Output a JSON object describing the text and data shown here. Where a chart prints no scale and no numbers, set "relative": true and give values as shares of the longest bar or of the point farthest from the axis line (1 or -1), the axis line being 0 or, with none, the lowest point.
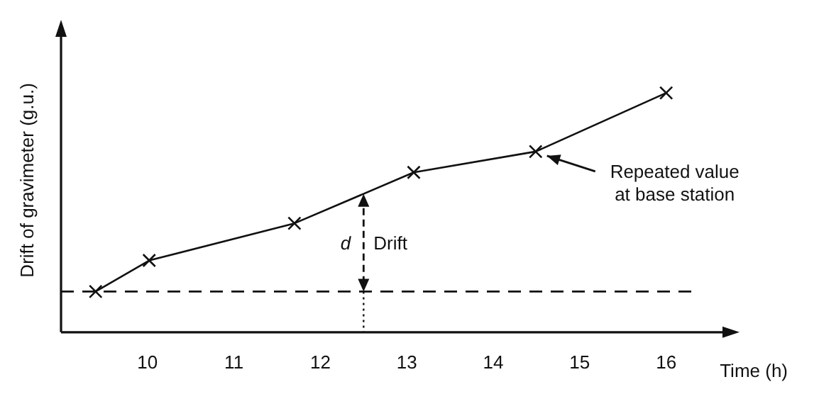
{
  "chart_data": {
    "type": "line",
    "relative": true,
    "xlabel": "Time (h)",
    "ylabel": "Drift of gravimeter (g.u.)",
    "x": [
      9.4,
      10.02,
      11.7,
      13.08,
      14.49,
      16.0
    ],
    "series": [
      {
        "color": "#111111",
        "values": [
          0.17,
          0.3,
          0.455,
          0.668,
          0.755,
          1
        ]
      }
    ],
    "xlim": [
      9,
      16.75
    ],
    "xticks": [
      10,
      11,
      12,
      13,
      14,
      15,
      16
    ],
    "grid": false,
    "legend": false,
    "marker": "cross",
    "line_style": "solid",
    "ref_lines": [
      {
        "axis": "y",
        "value": 0.17,
        "line_style": "dashed",
        "color": "#111111"
      }
    ],
    "annotations": [
      {
        "text": "d",
        "x": 12.5,
        "y": 0.578
      },
      "Drift",
      {
        "text": "Repeated value at base station",
        "x": 14.49,
        "y": 0.755
      }
    ]
  }
}
